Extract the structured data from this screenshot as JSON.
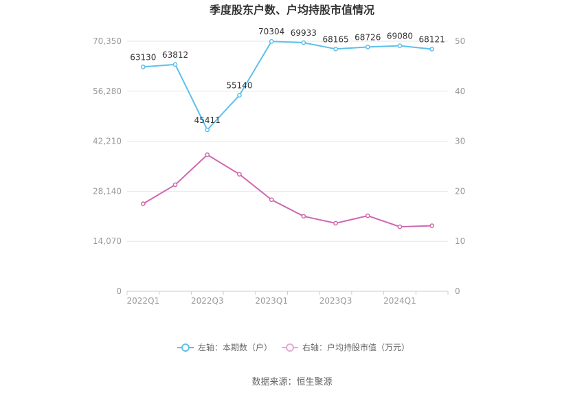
{
  "chart_data": {
    "type": "line",
    "title": "季度股东户数、户均持股市值情况",
    "x": [
      "2022Q1",
      "2022Q2",
      "2022Q3",
      "2022Q4",
      "2023Q1",
      "2023Q2",
      "2023Q3",
      "2023Q4",
      "2024Q1",
      "2024Q2"
    ],
    "x_tick_labels": [
      "2022Q1",
      "2022Q3",
      "2023Q1",
      "2023Q3",
      "2024Q1"
    ],
    "series": [
      {
        "name": "左轴：本期数（户）",
        "axis": "left",
        "color": "#5bc0eb",
        "values": [
          63130,
          63812,
          45411,
          55140,
          70304,
          69933,
          68165,
          68726,
          69080,
          68121
        ],
        "labels": [
          "63130",
          "63812",
          "45411",
          "55140",
          "70304",
          "69933",
          "68165",
          "68726",
          "69080",
          "68121"
        ]
      },
      {
        "name": "右轴：户均持股市值（万元）",
        "axis": "right",
        "color": "#d066b0",
        "values": [
          17.5,
          21.3,
          27.3,
          23.4,
          18.3,
          15.0,
          13.6,
          15.1,
          12.9,
          13.1
        ]
      }
    ],
    "y_left": {
      "ylim": [
        0,
        70350
      ],
      "ticks": [
        0,
        14070,
        28140,
        42210,
        56280,
        70350
      ],
      "tick_labels": [
        "0",
        "14,070",
        "28,140",
        "42,210",
        "56,280",
        "70,350"
      ]
    },
    "y_right": {
      "ylim": [
        0,
        50
      ],
      "ticks": [
        0,
        10,
        20,
        30,
        40,
        50
      ],
      "tick_labels": [
        "0",
        "10",
        "20",
        "30",
        "40",
        "50"
      ]
    },
    "grid": true,
    "legend": "bottom-center"
  },
  "source": "数据来源：恒生聚源"
}
